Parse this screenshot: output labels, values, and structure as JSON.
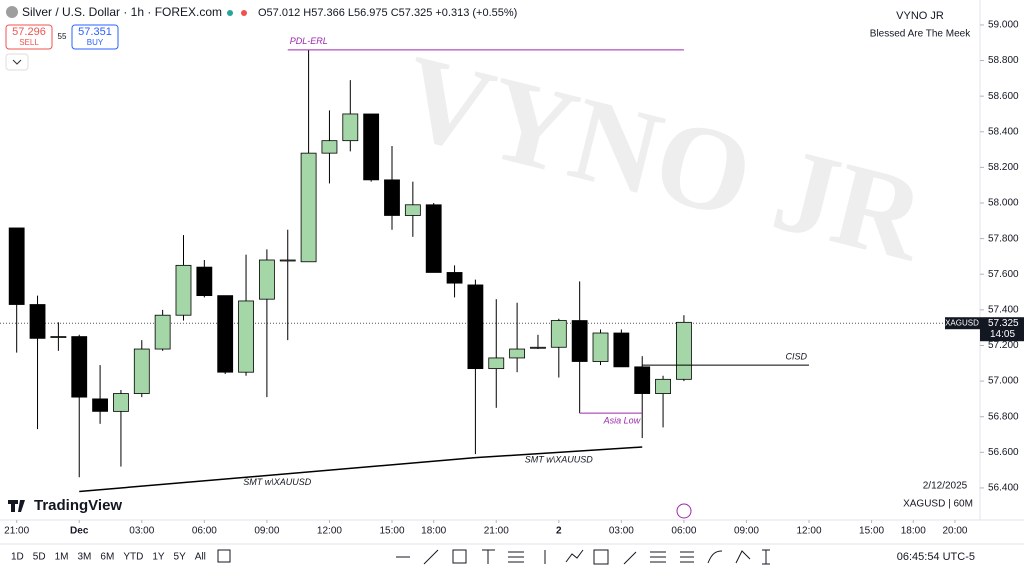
{
  "header": {
    "symbol": "Silver / U.S. Dollar · 1h · FOREX.com",
    "ohlc": "O57.012 H57.366 L56.975 C57.325 +0.313 (+0.55%)",
    "sell_price": "57.296",
    "sell_label": "SELL",
    "spread": "55",
    "buy_price": "57.351",
    "buy_label": "BUY",
    "author": "VYNO JR",
    "motto": "Blessed Are The Meek",
    "watermark": "VYNO JR",
    "date": "2/12/2025",
    "interval": "XAGUSD | 60M",
    "logo": "TradingView"
  },
  "toolbar": {
    "ranges": [
      "1D",
      "5D",
      "1M",
      "3M",
      "6M",
      "YTD",
      "1Y",
      "5Y",
      "All"
    ],
    "clock": "06:45:54 UTC-5"
  },
  "chart_data": {
    "type": "candlestick",
    "up_color": "#a5d6a7",
    "down_color": "#000000",
    "open": [
      57.86,
      57.43,
      57.25,
      57.25,
      56.9,
      56.83,
      56.93,
      57.18,
      57.37,
      57.64,
      57.48,
      57.05,
      57.46,
      57.68,
      57.67,
      58.28,
      58.35,
      58.5,
      58.13,
      57.93,
      57.99,
      57.61,
      57.54,
      57.07,
      57.13,
      57.19,
      57.19,
      57.34,
      57.11,
      57.27,
      57.08,
      56.93,
      57.01
    ],
    "high": [
      57.86,
      57.48,
      57.33,
      57.26,
      57.09,
      56.95,
      57.23,
      57.4,
      57.82,
      57.68,
      57.48,
      57.71,
      57.74,
      57.85,
      58.86,
      58.52,
      58.69,
      58.5,
      58.32,
      58.12,
      58.0,
      57.65,
      57.57,
      57.46,
      57.44,
      57.26,
      57.35,
      57.56,
      57.29,
      57.29,
      57.14,
      57.03,
      57.37
    ],
    "low": [
      57.16,
      56.73,
      57.17,
      56.46,
      56.76,
      56.52,
      56.91,
      57.17,
      57.34,
      57.47,
      57.04,
      57.03,
      56.91,
      57.23,
      57.67,
      58.11,
      58.29,
      58.12,
      57.85,
      57.81,
      57.61,
      57.47,
      56.59,
      56.85,
      57.05,
      57.18,
      57.02,
      56.82,
      57.09,
      57.08,
      56.68,
      56.74,
      57.0
    ],
    "close": [
      57.43,
      57.24,
      57.25,
      56.91,
      56.83,
      56.93,
      57.18,
      57.37,
      57.65,
      57.48,
      57.05,
      57.45,
      57.68,
      57.68,
      58.28,
      58.35,
      58.5,
      58.13,
      57.93,
      57.99,
      57.61,
      57.55,
      57.07,
      57.13,
      57.18,
      57.19,
      57.34,
      57.11,
      57.27,
      57.08,
      56.93,
      57.01,
      57.33
    ],
    "xlim": [
      -0.8,
      46.2
    ],
    "xticks": [
      {
        "value": 0,
        "label": "21:00"
      },
      {
        "value": 3,
        "label": "Dec"
      },
      {
        "value": 6,
        "label": "03:00"
      },
      {
        "value": 9,
        "label": "06:00"
      },
      {
        "value": 12,
        "label": "09:00"
      },
      {
        "value": 15,
        "label": "12:00"
      },
      {
        "value": 18,
        "label": "15:00"
      },
      {
        "value": 20,
        "label": "18:00"
      },
      {
        "value": 23,
        "label": "21:00"
      },
      {
        "value": 26,
        "label": "2"
      },
      {
        "value": 29,
        "label": "03:00"
      },
      {
        "value": 32,
        "label": "06:00"
      },
      {
        "value": 35,
        "label": "09:00"
      },
      {
        "value": 38,
        "label": "12:00"
      },
      {
        "value": 41,
        "label": "15:00"
      },
      {
        "value": 43,
        "label": "18:00"
      },
      {
        "value": 45,
        "label": "20:00"
      }
    ],
    "ylim": [
      56.22,
      59.14
    ],
    "yticks": [
      {
        "value": 56.4,
        "label": "56.400"
      },
      {
        "value": 56.6,
        "label": "56.600"
      },
      {
        "value": 56.8,
        "label": "56.800"
      },
      {
        "value": 57,
        "label": "57.000"
      },
      {
        "value": 57.2,
        "label": "57.200"
      },
      {
        "value": 57.4,
        "label": "57.400"
      },
      {
        "value": 57.6,
        "label": "57.600"
      },
      {
        "value": 57.8,
        "label": "57.800"
      },
      {
        "value": 58,
        "label": "58.000"
      },
      {
        "value": 58.2,
        "label": "58.200"
      },
      {
        "value": 58.4,
        "label": "58.400"
      },
      {
        "value": 58.6,
        "label": "58.600"
      },
      {
        "value": 58.8,
        "label": "58.800"
      },
      {
        "value": 59,
        "label": "59.000"
      }
    ],
    "last_price": 57.325,
    "countdown": "14:05",
    "ticker": "XAGUSD",
    "annotations": [
      {
        "text": "PDL-ERL",
        "color": "#9c27b0",
        "x": [
          13,
          32
        ],
        "y": [
          58.86,
          58.86
        ]
      },
      {
        "text": "CISD",
        "color": "#000000",
        "x": [
          30,
          38
        ],
        "y": [
          57.09,
          57.09
        ]
      },
      {
        "text": "Asia Low",
        "color": "#9c27b0",
        "x": [
          27,
          30
        ],
        "y": [
          56.82,
          56.82
        ]
      },
      {
        "text": "SMT w\\XAUUSD",
        "color": "#000000",
        "x": [
          3,
          22
        ],
        "y": [
          56.38,
          56.57
        ]
      },
      {
        "text": "SMT w\\XAUUSD",
        "color": "#000000",
        "x": [
          22,
          30
        ],
        "y": [
          56.57,
          56.63
        ]
      }
    ]
  }
}
